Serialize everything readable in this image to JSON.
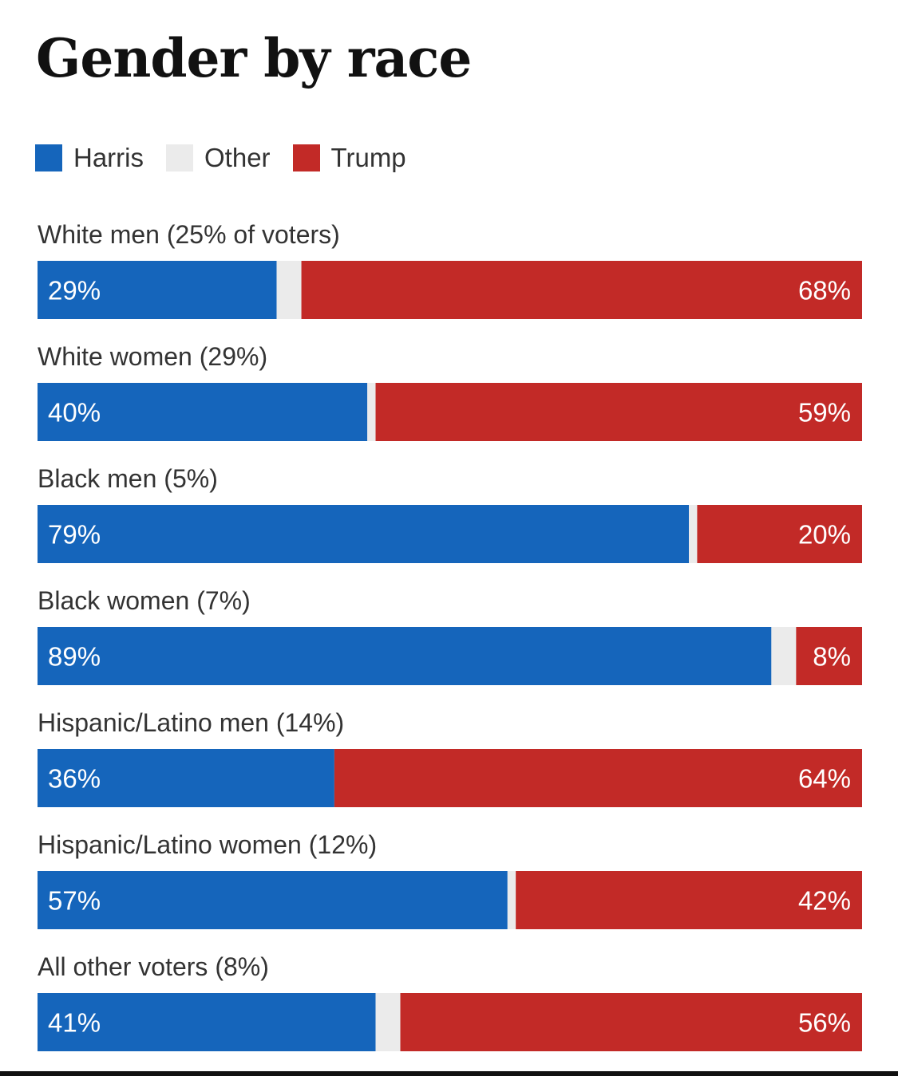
{
  "chart_data": {
    "type": "bar",
    "orientation": "horizontal",
    "stacked": true,
    "title": "Gender by race",
    "legend": [
      {
        "name": "Harris",
        "color": "#1565bb"
      },
      {
        "name": "Other",
        "color": "#ebebeb"
      },
      {
        "name": "Trump",
        "color": "#c22a27"
      }
    ],
    "categories": [
      "White men (25% of voters)",
      "White women (29%)",
      "Black men (5%)",
      "Black women (7%)",
      "Hispanic/Latino men (14%)",
      "Hispanic/Latino women (12%)",
      "All other voters (8%)"
    ],
    "series": [
      {
        "name": "Harris",
        "values": [
          29,
          40,
          79,
          89,
          36,
          57,
          41
        ],
        "labels": [
          "29%",
          "40%",
          "79%",
          "89%",
          "36%",
          "57%",
          "41%"
        ]
      },
      {
        "name": "Other",
        "values": [
          3,
          1,
          1,
          3,
          0,
          1,
          3
        ]
      },
      {
        "name": "Trump",
        "values": [
          68,
          59,
          20,
          8,
          64,
          42,
          56
        ],
        "labels": [
          "68%",
          "59%",
          "20%",
          "8%",
          "64%",
          "42%",
          "56%"
        ]
      }
    ],
    "xlim": [
      0,
      100
    ],
    "legend_position": "top-left",
    "grid": false
  }
}
